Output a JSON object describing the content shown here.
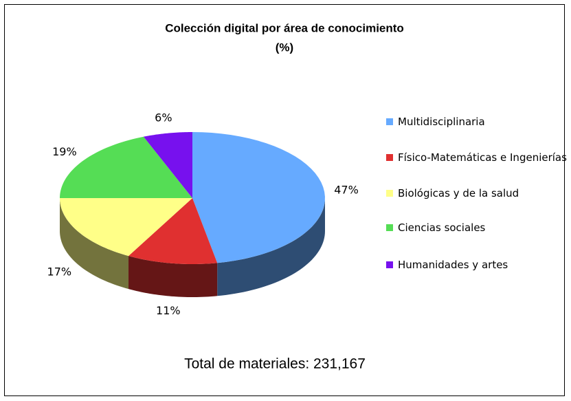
{
  "chart_data": {
    "type": "pie3d",
    "title": "Colección digital por área de conocimiento",
    "subtitle": "(%)",
    "categories": [
      "Multidisciplinaria",
      "Físico-Matemáticas e Ingenierías",
      "Biológicas y de la salud",
      "Ciencias sociales",
      "Humanidades y artes"
    ],
    "values": [
      47,
      11,
      17,
      19,
      6
    ],
    "value_labels": [
      "47%",
      "11%",
      "17%",
      "19%",
      "6%"
    ],
    "colors": [
      "#66aaff",
      "#e03030",
      "#ffff88",
      "#55dd55",
      "#7711ee"
    ],
    "annotation": "Total de materiales: 231,167",
    "legend": "right"
  }
}
